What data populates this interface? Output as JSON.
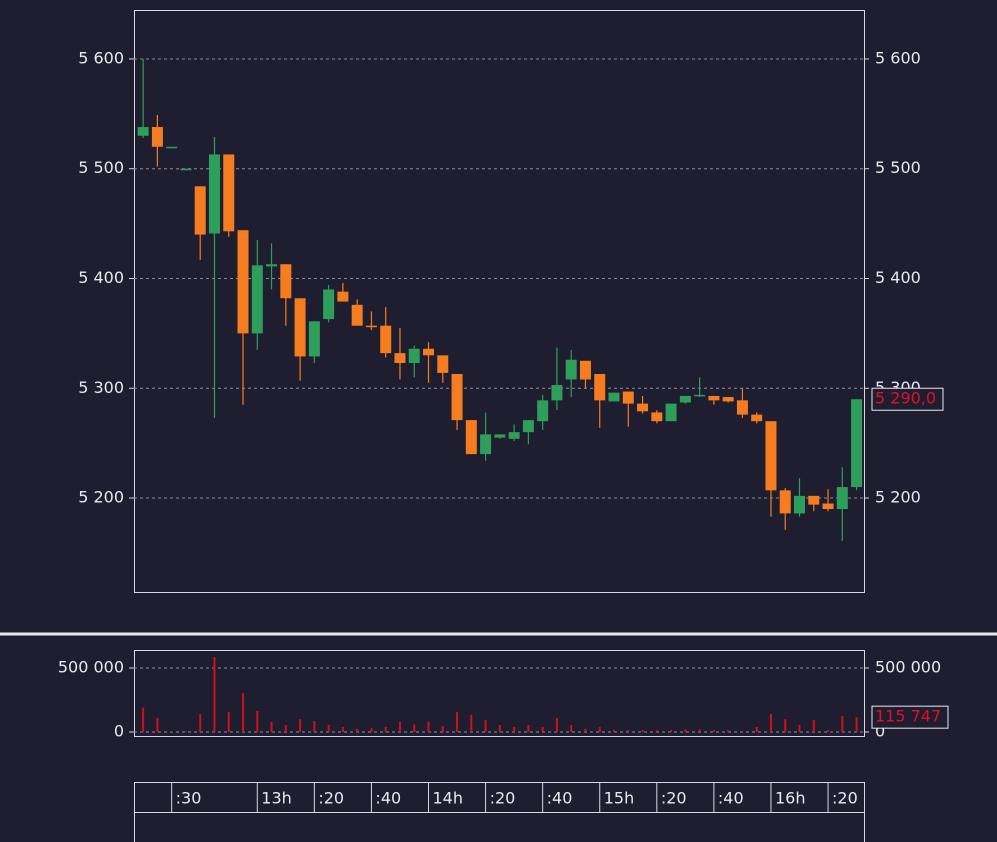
{
  "chart_data": [
    {
      "type": "candlestick",
      "up_color": "#2e9e5b",
      "down_color": "#f57c1f",
      "grid": true,
      "x": [
        740,
        745,
        750,
        755,
        760,
        765,
        770,
        775,
        780,
        785,
        790,
        795,
        800,
        805,
        810,
        815,
        820,
        825,
        830,
        835,
        840,
        845,
        850,
        855,
        860,
        865,
        870,
        875,
        880,
        885,
        890,
        895,
        900,
        905,
        910,
        915,
        920,
        925,
        930,
        935,
        940,
        945,
        950,
        955,
        960,
        965,
        970,
        975,
        980,
        985,
        990
      ],
      "open": [
        5530,
        5538,
        5520,
        5500,
        5484,
        5441,
        5513,
        5444,
        5350,
        5411,
        5413,
        5382,
        5329,
        5363,
        5388,
        5376,
        5357,
        5357,
        5332,
        5323,
        5336,
        5330,
        5313,
        5271,
        5240,
        5255,
        5254,
        5260,
        5270,
        5289,
        5308,
        5325,
        5313,
        5288,
        5297,
        5286,
        5278,
        5270,
        5287,
        5293,
        5293,
        5292,
        5289,
        5276,
        5270,
        5207,
        5186,
        5202,
        5195,
        5190,
        5210
      ],
      "high": [
        5600,
        5549,
        5520,
        5500,
        5484,
        5529,
        5513,
        5444,
        5435,
        5432,
        5413,
        5382,
        5361,
        5394,
        5396,
        5381,
        5370,
        5374,
        5355,
        5339,
        5342,
        5330,
        5313,
        5271,
        5278,
        5258,
        5267,
        5271,
        5294,
        5337,
        5335,
        5325,
        5313,
        5296,
        5297,
        5293,
        5280,
        5286,
        5293,
        5310,
        5293,
        5292,
        5300,
        5278,
        5270,
        5209,
        5218,
        5202,
        5208,
        5228,
        5290
      ],
      "low": [
        5528,
        5502,
        5520,
        5500,
        5417,
        5273,
        5438,
        5285,
        5335,
        5390,
        5357,
        5307,
        5323,
        5360,
        5379,
        5357,
        5353,
        5328,
        5308,
        5310,
        5305,
        5305,
        5262,
        5240,
        5234,
        5254,
        5252,
        5249,
        5262,
        5280,
        5292,
        5300,
        5264,
        5288,
        5265,
        5277,
        5268,
        5270,
        5286,
        5292,
        5285,
        5287,
        5273,
        5268,
        5183,
        5171,
        5183,
        5188,
        5188,
        5161,
        5207
      ],
      "close": [
        5538,
        5520,
        5520,
        5500,
        5440,
        5513,
        5443,
        5350,
        5412,
        5413,
        5382,
        5329,
        5361,
        5390,
        5379,
        5357,
        5356,
        5332,
        5323,
        5336,
        5330,
        5314,
        5271,
        5240,
        5258,
        5258,
        5260,
        5271,
        5289,
        5303,
        5326,
        5308,
        5289,
        5296,
        5286,
        5279,
        5270,
        5286,
        5293,
        5294,
        5289,
        5288,
        5276,
        5270,
        5207,
        5186,
        5202,
        5194,
        5190,
        5210,
        5290
      ],
      "xlim": [
        736.8,
        992.6
      ],
      "xticks": [
        {
          "value": 750,
          "label": ":30"
        },
        {
          "value": 780,
          "label": "13h"
        },
        {
          "value": 800,
          "label": ":20"
        },
        {
          "value": 820,
          "label": ":40"
        },
        {
          "value": 840,
          "label": "14h"
        },
        {
          "value": 860,
          "label": ":20"
        },
        {
          "value": 880,
          "label": ":40"
        },
        {
          "value": 900,
          "label": "15h"
        },
        {
          "value": 920,
          "label": ":20"
        },
        {
          "value": 940,
          "label": ":40"
        },
        {
          "value": 960,
          "label": "16h"
        },
        {
          "value": 980,
          "label": ":20"
        }
      ],
      "ylim": [
        5114.4,
        5644.6
      ],
      "yticks": [
        {
          "value": 5200,
          "label": "5 200"
        },
        {
          "value": 5300,
          "label": "5 300"
        },
        {
          "value": 5400,
          "label": "5 400"
        },
        {
          "value": 5500,
          "label": "5 500"
        },
        {
          "value": 5600,
          "label": "5 600"
        }
      ],
      "last_label": {
        "value": 5290.0,
        "label": "5 290,0"
      },
      "last_color": "#e0102a"
    },
    {
      "type": "bar",
      "color": "#d0101e",
      "grid": true,
      "x": [
        740,
        745,
        750,
        755,
        760,
        765,
        770,
        775,
        780,
        785,
        790,
        795,
        800,
        805,
        810,
        815,
        820,
        825,
        830,
        835,
        840,
        845,
        850,
        855,
        860,
        865,
        870,
        875,
        880,
        885,
        890,
        895,
        900,
        905,
        910,
        915,
        920,
        925,
        930,
        935,
        940,
        945,
        950,
        955,
        960,
        965,
        970,
        975,
        980,
        985,
        990
      ],
      "values": [
        190000,
        110000,
        5000,
        5000,
        140000,
        586000,
        155000,
        305000,
        165000,
        80000,
        55000,
        100000,
        85000,
        55000,
        40000,
        25000,
        30000,
        40000,
        80000,
        60000,
        80000,
        45000,
        155000,
        135000,
        95000,
        55000,
        40000,
        55000,
        40000,
        110000,
        55000,
        25000,
        40000,
        15000,
        15000,
        15000,
        15000,
        15000,
        20000,
        20000,
        15000,
        15000,
        8000,
        40000,
        140000,
        100000,
        55000,
        95000,
        15000,
        125000,
        115747
      ],
      "ylim": [
        -31250,
        640625
      ],
      "yticks": [
        0,
        {
          "value": 500000,
          "label": "500 000"
        }
      ],
      "last_label": {
        "value": 115747,
        "label": "115 747"
      },
      "last_color": "#e0102a"
    }
  ]
}
